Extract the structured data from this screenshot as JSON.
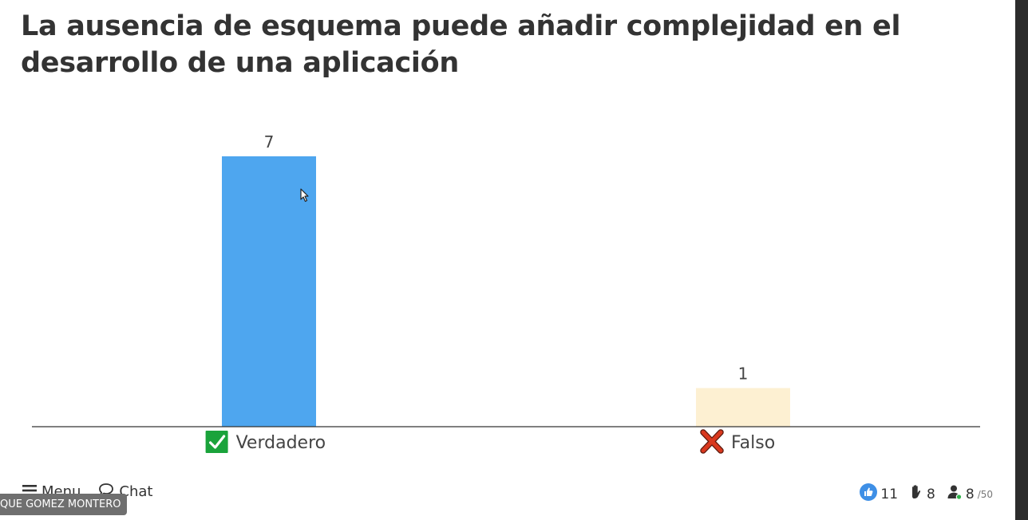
{
  "question": {
    "title": "La ausencia de esquema puede añadir complejidad en el desarrollo de una aplicación"
  },
  "chart_data": {
    "type": "bar",
    "categories": [
      "Verdadero",
      "Falso"
    ],
    "values": [
      7,
      1
    ],
    "colors": [
      "#4ea6ef",
      "#fdf0d2"
    ],
    "markers": [
      "check-icon",
      "cross-icon"
    ],
    "marker_colors": [
      "#1aa33b",
      "#d9381e"
    ],
    "ylim": [
      0,
      7
    ],
    "title": "",
    "xlabel": "",
    "ylabel": ""
  },
  "footer": {
    "menu_label": "Menu",
    "chat_label": "Chat",
    "presenter_name": "QUE GOMEZ MONTERO",
    "likes": "11",
    "raised_hands": "8",
    "participants": "8",
    "participants_max": "/50"
  },
  "colors": {
    "like_icon": "#3e8fe6",
    "online_dot": "#2fb34a"
  }
}
